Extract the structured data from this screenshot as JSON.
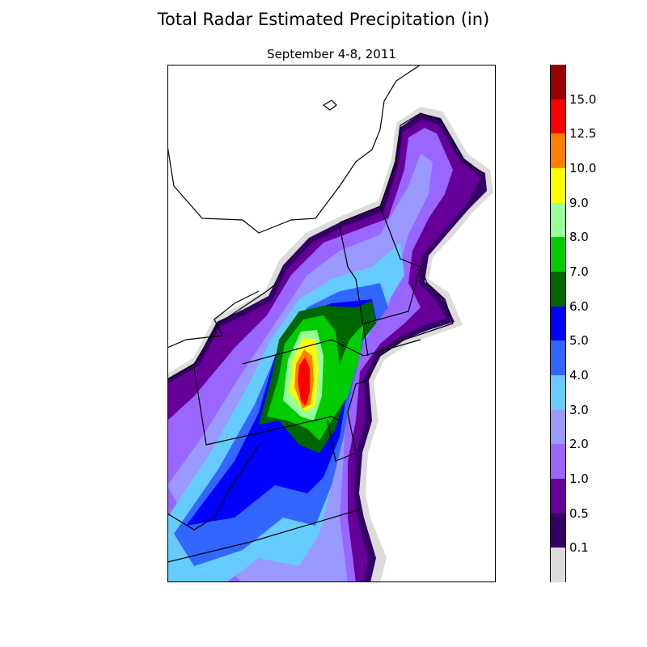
{
  "title": "Total Radar Estimated Precipitation (in)",
  "subtitle": "September 4-8, 2011",
  "colorbar": {
    "labels": [
      "0.1",
      "0.5",
      "1.0",
      "2.0",
      "3.0",
      "4.0",
      "5.0",
      "6.0",
      "7.0",
      "8.0",
      "9.0",
      "10.0",
      "12.5",
      "15.0"
    ],
    "colors": [
      "#dcdcdc",
      "#330066",
      "#660099",
      "#9966ff",
      "#9999ff",
      "#66ccff",
      "#3366ff",
      "#0000ff",
      "#006600",
      "#00cc00",
      "#99ff99",
      "#ffff00",
      "#ff7f00",
      "#ff0000",
      "#990000"
    ]
  }
}
